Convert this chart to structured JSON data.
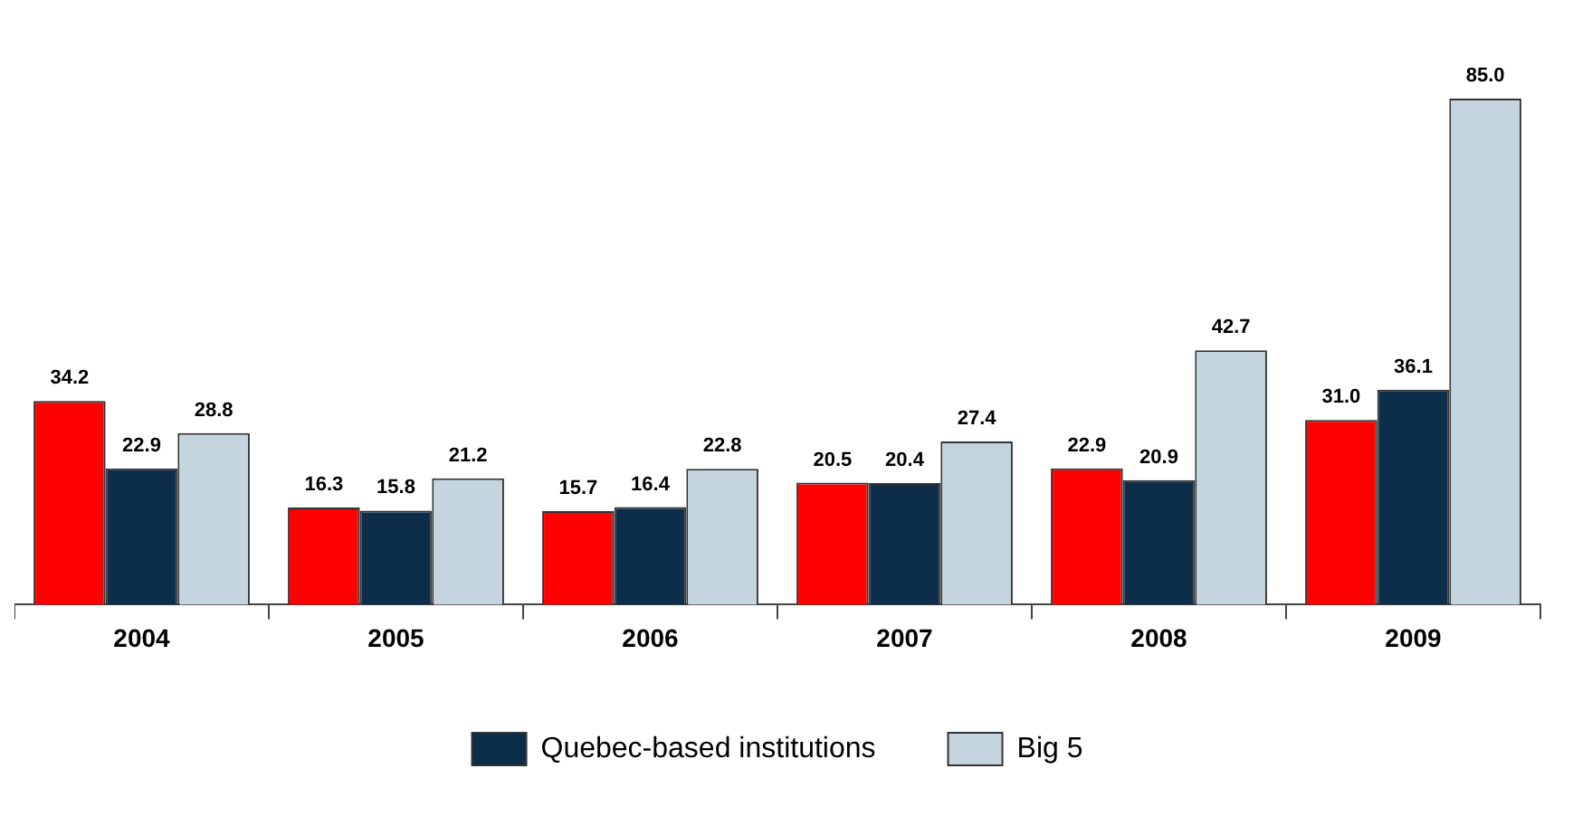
{
  "chart_data": {
    "type": "bar",
    "categories": [
      "2004",
      "2005",
      "2006",
      "2007",
      "2008",
      "2009"
    ],
    "series": [
      {
        "color": "#ff0000",
        "values": [
          34.2,
          16.3,
          15.7,
          20.5,
          22.9,
          31.0
        ],
        "value_labels": [
          "34.2",
          "16.3",
          "15.7",
          "20.5",
          "22.9",
          "31.0"
        ]
      },
      {
        "name": "Quebec-based institutions",
        "color": "#0d2e4a",
        "values": [
          22.9,
          15.8,
          16.4,
          20.4,
          20.9,
          36.1
        ],
        "value_labels": [
          "22.9",
          "15.8",
          "16.4",
          "20.4",
          "20.9",
          "36.1"
        ]
      },
      {
        "name": "Big 5",
        "color": "#c5d5df",
        "values": [
          28.8,
          21.2,
          22.8,
          27.4,
          42.7,
          85.0
        ],
        "value_labels": [
          "28.8",
          "21.2",
          "22.8",
          "27.4",
          "42.7",
          "85.0"
        ]
      }
    ],
    "legend": "bottom",
    "grid": false
  }
}
